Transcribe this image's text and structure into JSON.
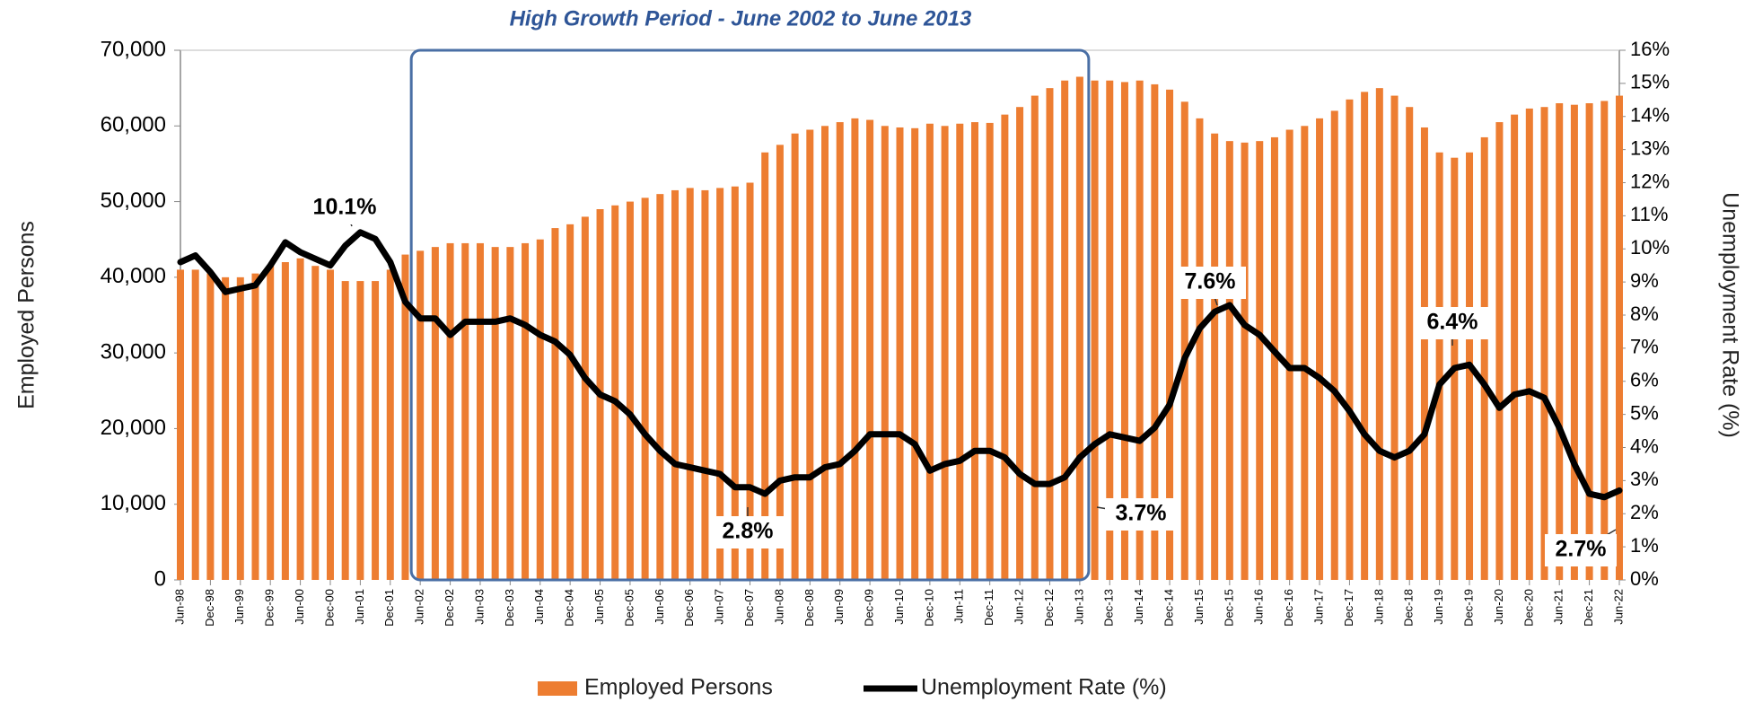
{
  "chart_data": {
    "type": "bar",
    "title": "High Growth Period - June 2002 to June 2013",
    "ylabel": "Employed Persons",
    "y2label": "Unemployment Rate (%)",
    "categories": [
      "Jun-98",
      null,
      "Dec-98",
      null,
      "Jun-99",
      null,
      "Dec-99",
      null,
      "Jun-00",
      null,
      "Dec-00",
      null,
      "Jun-01",
      null,
      "Dec-01",
      null,
      "Jun-02",
      null,
      "Dec-02",
      null,
      "Jun-03",
      null,
      "Dec-03",
      null,
      "Jun-04",
      null,
      "Dec-04",
      null,
      "Jun-05",
      null,
      "Dec-05",
      null,
      "Jun-06",
      null,
      "Dec-06",
      null,
      "Jun-07",
      null,
      "Dec-07",
      null,
      "Jun-08",
      null,
      "Dec-08",
      null,
      "Jun-09",
      null,
      "Dec-09",
      null,
      "Jun-10",
      null,
      "Dec-10",
      null,
      "Jun-11",
      null,
      "Dec-11",
      null,
      "Jun-12",
      null,
      "Dec-12",
      null,
      "Jun-13",
      null,
      "Dec-13",
      null,
      "Jun-14",
      null,
      "Dec-14",
      null,
      "Jun-15",
      null,
      "Dec-15",
      null,
      "Jun-16",
      null,
      "Dec-16",
      null,
      "Jun-17",
      null,
      "Dec-17",
      null,
      "Jun-18",
      null,
      "Dec-18",
      null,
      "Jun-19",
      null,
      "Dec-19",
      null,
      "Jun-20",
      null,
      "Dec-20",
      null,
      "Jun-21",
      null,
      "Dec-21",
      null,
      "Jun-22"
    ],
    "series": [
      {
        "name": "Employed Persons",
        "type": "bar",
        "color": "#ED7D31",
        "values": [
          41000,
          41000,
          40500,
          40000,
          40000,
          40500,
          41500,
          42000,
          42500,
          41500,
          41000,
          39500,
          39500,
          39500,
          41000,
          43000,
          43500,
          44000,
          44500,
          44500,
          44500,
          44000,
          44000,
          44500,
          45000,
          46500,
          47000,
          48000,
          49000,
          49500,
          50000,
          50500,
          51000,
          51500,
          51800,
          51500,
          51800,
          52000,
          52500,
          56500,
          57500,
          59000,
          59500,
          60000,
          60500,
          61000,
          60800,
          60000,
          59800,
          59700,
          60300,
          60000,
          60300,
          60500,
          60400,
          61500,
          62500,
          64000,
          65000,
          66000,
          66500,
          66000,
          66000,
          65800,
          66000,
          65500,
          64800,
          63200,
          61000,
          59000,
          58000,
          57800,
          58000,
          58500,
          59500,
          60000,
          61000,
          62000,
          63500,
          64500,
          65000,
          64000,
          62500,
          59800,
          56500,
          55800,
          56500,
          58500,
          60500,
          61500,
          62300,
          62500,
          63000,
          62800,
          63000,
          63300,
          64000
        ]
      },
      {
        "name": "Unemployment Rate (%)",
        "type": "line",
        "color": "#000000",
        "axis": "y2",
        "values": [
          9.6,
          9.8,
          9.3,
          8.7,
          8.8,
          8.9,
          9.5,
          10.2,
          9.9,
          9.7,
          9.5,
          10.1,
          10.5,
          10.3,
          9.6,
          8.4,
          7.9,
          7.9,
          7.4,
          7.8,
          7.8,
          7.8,
          7.9,
          7.7,
          7.4,
          7.2,
          6.8,
          6.1,
          5.6,
          5.4,
          5.0,
          4.4,
          3.9,
          3.5,
          3.4,
          3.3,
          3.2,
          2.8,
          2.8,
          2.6,
          3.0,
          3.1,
          3.1,
          3.4,
          3.5,
          3.9,
          4.4,
          4.4,
          4.4,
          4.1,
          3.3,
          3.5,
          3.6,
          3.9,
          3.9,
          3.7,
          3.2,
          2.9,
          2.9,
          3.1,
          3.7,
          4.1,
          4.4,
          4.3,
          4.2,
          4.6,
          5.3,
          6.7,
          7.6,
          8.1,
          8.3,
          7.7,
          7.4,
          6.9,
          6.4,
          6.4,
          6.1,
          5.7,
          5.1,
          4.4,
          3.9,
          3.7,
          3.9,
          4.4,
          5.9,
          6.4,
          6.5,
          5.9,
          5.2,
          5.6,
          5.7,
          5.5,
          4.6,
          3.5,
          2.6,
          2.5,
          2.7
        ]
      }
    ],
    "ylim": [
      0,
      70000
    ],
    "yticks": [
      {
        "value": 0,
        "label": "0"
      },
      {
        "value": 10000,
        "label": "10,000"
      },
      {
        "value": 20000,
        "label": "20,000"
      },
      {
        "value": 30000,
        "label": "30,000"
      },
      {
        "value": 40000,
        "label": "40,000"
      },
      {
        "value": 50000,
        "label": "50,000"
      },
      {
        "value": 60000,
        "label": "60,000"
      },
      {
        "value": 70000,
        "label": "70,000"
      }
    ],
    "y2lim": [
      0,
      16
    ],
    "y2ticks": [
      {
        "value": 0,
        "label": "0%"
      },
      {
        "value": 1,
        "label": "1%"
      },
      {
        "value": 2,
        "label": "2%"
      },
      {
        "value": 3,
        "label": "3%"
      },
      {
        "value": 4,
        "label": "4%"
      },
      {
        "value": 5,
        "label": "5%"
      },
      {
        "value": 6,
        "label": "6%"
      },
      {
        "value": 7,
        "label": "7%"
      },
      {
        "value": 8,
        "label": "8%"
      },
      {
        "value": 9,
        "label": "9%"
      },
      {
        "value": 10,
        "label": "10%"
      },
      {
        "value": 11,
        "label": "11%"
      },
      {
        "value": 12,
        "label": "12%"
      },
      {
        "value": 13,
        "label": "13%"
      },
      {
        "value": 14,
        "label": "14%"
      },
      {
        "value": 15,
        "label": "15%"
      },
      {
        "value": 16,
        "label": "16%"
      }
    ],
    "annotations": [
      "10.1%",
      "2.8%",
      "3.7%",
      "7.6%",
      "6.4%",
      "2.7%"
    ],
    "legend": "bottom"
  }
}
